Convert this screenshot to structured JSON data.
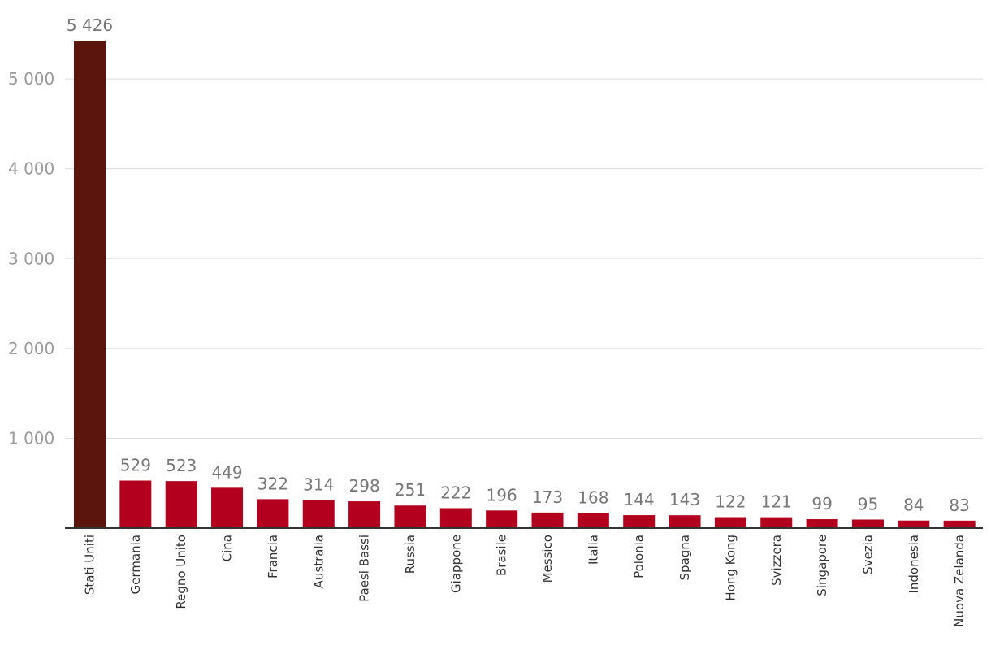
{
  "chart_data": {
    "type": "bar",
    "categories": [
      "Stati Uniti",
      "Germania",
      "Regno Unito",
      "Cina",
      "Francia",
      "Australia",
      "Paesi Bassi",
      "Russia",
      "Giappone",
      "Brasile",
      "Messico",
      "Italia",
      "Polonia",
      "Spagna",
      "Hong Kong",
      "Svizzera",
      "Singapore",
      "Svezia",
      "Indonesia",
      "Nuova Zelanda"
    ],
    "values": [
      5426,
      529,
      523,
      449,
      322,
      314,
      298,
      251,
      222,
      196,
      173,
      168,
      144,
      143,
      122,
      121,
      99,
      95,
      84,
      83
    ],
    "value_labels": [
      "5 426",
      "529",
      "523",
      "449",
      "322",
      "314",
      "298",
      "251",
      "222",
      "196",
      "173",
      "168",
      "144",
      "143",
      "122",
      "121",
      "99",
      "95",
      "84",
      "83"
    ],
    "title": "",
    "xlabel": "",
    "ylabel": "",
    "ylim": [
      0,
      5426
    ],
    "yticks": [
      1000,
      2000,
      3000,
      4000,
      5000
    ],
    "ytick_labels": [
      "1 000",
      "2 000",
      "3 000",
      "4 000",
      "5 000"
    ],
    "grid": true,
    "legend": "none",
    "colors": {
      "highlight": "#5b150c",
      "bar": "#b3001e",
      "grid": "#dcdcdc",
      "axis": "#333333"
    },
    "highlight_index": 0
  }
}
